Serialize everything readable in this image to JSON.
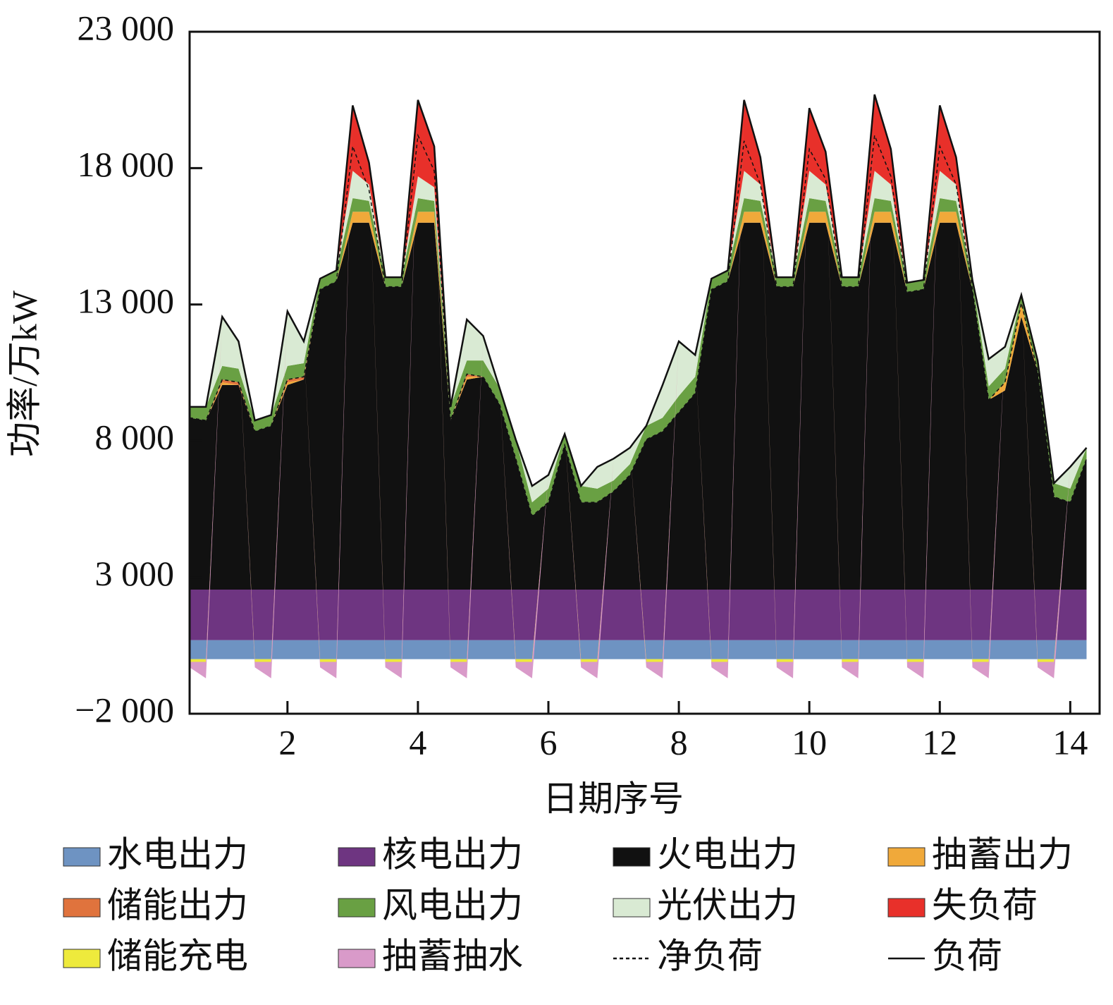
{
  "chart_data": {
    "type": "stacked_area",
    "y_label": "功率/万kW",
    "x_label": "日期序号",
    "xlim": [
      0.5,
      14.45
    ],
    "xticks": [
      2,
      4,
      6,
      8,
      10,
      12,
      14
    ],
    "ylim": [
      -2000,
      23000
    ],
    "yticks": [
      {
        "value": -2000,
        "label": "−2 000"
      },
      {
        "value": 3000,
        "label": "3 000"
      },
      {
        "value": 8000,
        "label": "8 000"
      },
      {
        "value": 13000,
        "label": "13 000"
      },
      {
        "value": 18000,
        "label": "18 000"
      },
      {
        "value": 23000,
        "label": "23 000"
      }
    ],
    "x": [
      0.5,
      0.75,
      1,
      1.25,
      1.5,
      1.75,
      2,
      2.25,
      2.5,
      2.75,
      3,
      3.25,
      3.5,
      3.75,
      4,
      4.25,
      4.5,
      4.75,
      5,
      5.25,
      5.5,
      5.75,
      6,
      6.25,
      6.5,
      6.75,
      7,
      7.25,
      7.5,
      7.75,
      8,
      8.25,
      8.5,
      8.75,
      9,
      9.25,
      9.5,
      9.75,
      10,
      10.25,
      10.5,
      10.75,
      11,
      11.25,
      11.5,
      11.75,
      12,
      12.25,
      12.5,
      12.75,
      13,
      13.25,
      13.5,
      13.75,
      14,
      14.25
    ],
    "series": [
      {
        "name": "水电出力",
        "kind": "area",
        "color": "#6e93c2",
        "values": [
          700,
          700,
          700,
          700,
          700,
          700,
          700,
          700,
          700,
          700,
          700,
          700,
          700,
          700,
          700,
          700,
          700,
          700,
          700,
          700,
          700,
          700,
          700,
          700,
          700,
          700,
          700,
          700,
          700,
          700,
          700,
          700,
          700,
          700,
          700,
          700,
          700,
          700,
          700,
          700,
          700,
          700,
          700,
          700,
          700,
          700,
          700,
          700,
          700,
          700,
          700,
          700,
          700,
          700,
          700,
          700
        ]
      },
      {
        "name": "核电出力",
        "kind": "area",
        "color": "#6e3581",
        "values": [
          1850,
          1850,
          1850,
          1850,
          1850,
          1850,
          1850,
          1850,
          1850,
          1850,
          1850,
          1850,
          1850,
          1850,
          1850,
          1850,
          1850,
          1850,
          1850,
          1850,
          1850,
          1850,
          1850,
          1850,
          1850,
          1850,
          1850,
          1850,
          1850,
          1850,
          1850,
          1850,
          1850,
          1850,
          1850,
          1850,
          1850,
          1850,
          1850,
          1850,
          1850,
          1850,
          1850,
          1850,
          1850,
          1850,
          1850,
          1850,
          1850,
          1850,
          1850,
          1850,
          1850,
          1850,
          1850,
          1850
        ]
      },
      {
        "name": "火电出力",
        "kind": "area",
        "color": "#111111",
        "values": [
          6300,
          6200,
          7500,
          7500,
          5800,
          6000,
          7500,
          7700,
          11000,
          11300,
          13450,
          13450,
          11100,
          11100,
          13450,
          13450,
          6200,
          7700,
          7800,
          6800,
          4800,
          2700,
          3200,
          5300,
          3200,
          3200,
          3600,
          4200,
          5500,
          5800,
          6500,
          7200,
          11000,
          11300,
          13450,
          13450,
          11100,
          11100,
          13450,
          13450,
          11100,
          11100,
          13450,
          13450,
          10900,
          11000,
          13450,
          13450,
          11000,
          6950,
          7300,
          10000,
          8000,
          3400,
          3200,
          4800
        ]
      },
      {
        "name": "抽蓄出力",
        "kind": "area",
        "color": "#f0a93a",
        "values": [
          0,
          0,
          100,
          0,
          0,
          0,
          100,
          0,
          0,
          0,
          400,
          400,
          0,
          0,
          400,
          400,
          0,
          100,
          0,
          0,
          0,
          0,
          0,
          0,
          0,
          0,
          0,
          0,
          0,
          0,
          0,
          0,
          0,
          0,
          400,
          400,
          0,
          0,
          400,
          400,
          0,
          0,
          400,
          400,
          0,
          0,
          400,
          400,
          0,
          0,
          300,
          500,
          0,
          0,
          0,
          0
        ]
      },
      {
        "name": "储能出力",
        "kind": "area",
        "color": "#e0733d",
        "values": [
          0,
          0,
          100,
          100,
          0,
          0,
          100,
          100,
          0,
          0,
          0,
          0,
          0,
          0,
          0,
          0,
          0,
          100,
          0,
          0,
          0,
          0,
          0,
          0,
          0,
          0,
          0,
          0,
          0,
          0,
          0,
          0,
          0,
          0,
          0,
          0,
          0,
          0,
          0,
          0,
          0,
          0,
          0,
          0,
          0,
          0,
          0,
          0,
          0,
          0,
          0,
          0,
          0,
          0,
          0,
          0
        ]
      },
      {
        "name": "风电出力",
        "kind": "area",
        "color": "#69a043",
        "values": [
          400,
          500,
          500,
          500,
          400,
          400,
          500,
          500,
          400,
          400,
          500,
          400,
          350,
          350,
          500,
          400,
          500,
          500,
          600,
          600,
          700,
          500,
          500,
          400,
          600,
          500,
          400,
          400,
          500,
          500,
          600,
          600,
          400,
          400,
          500,
          400,
          350,
          350,
          500,
          400,
          350,
          350,
          500,
          400,
          350,
          350,
          500,
          400,
          350,
          500,
          500,
          300,
          400,
          500,
          500,
          400
        ]
      },
      {
        "name": "光伏出力",
        "kind": "area",
        "color": "#d9ead3",
        "values": [
          0,
          0,
          1800,
          1000,
          0,
          0,
          2000,
          800,
          0,
          0,
          1000,
          600,
          0,
          0,
          800,
          500,
          0,
          1500,
          900,
          0,
          0,
          600,
          500,
          0,
          0,
          800,
          800,
          600,
          0,
          1200,
          2000,
          800,
          0,
          0,
          1000,
          600,
          0,
          0,
          1000,
          600,
          0,
          0,
          1000,
          600,
          0,
          0,
          1000,
          600,
          0,
          1000,
          800,
          0,
          0,
          0,
          800,
          0
        ]
      },
      {
        "name": "失负荷",
        "kind": "area",
        "color": "#e8302a",
        "values": [
          0,
          0,
          0,
          0,
          0,
          0,
          0,
          0,
          0,
          0,
          2400,
          800,
          0,
          0,
          2800,
          1500,
          0,
          0,
          0,
          0,
          0,
          0,
          0,
          0,
          0,
          0,
          0,
          0,
          0,
          0,
          0,
          0,
          0,
          0,
          2600,
          1000,
          0,
          0,
          2300,
          1200,
          0,
          0,
          2800,
          1300,
          0,
          0,
          2400,
          1000,
          0,
          0,
          0,
          0,
          0,
          0,
          0,
          0
        ]
      },
      {
        "name": "储能充电",
        "kind": "area",
        "color": "#eeea3c",
        "values": [
          -100,
          -100,
          0,
          0,
          -100,
          -100,
          0,
          0,
          -100,
          -100,
          0,
          0,
          -100,
          -100,
          0,
          0,
          -100,
          -100,
          0,
          0,
          -100,
          -100,
          0,
          0,
          -100,
          -100,
          0,
          0,
          -100,
          -100,
          0,
          0,
          -100,
          -100,
          0,
          0,
          -100,
          -100,
          0,
          0,
          -100,
          -100,
          0,
          0,
          -100,
          -100,
          0,
          0,
          -100,
          -100,
          0,
          0,
          -100,
          -100,
          0,
          0
        ]
      },
      {
        "name": "抽蓄抽水",
        "kind": "area",
        "color": "#d99ac9",
        "values": [
          -200,
          -600,
          0,
          0,
          -200,
          -600,
          0,
          0,
          -200,
          -600,
          0,
          0,
          -200,
          -600,
          0,
          0,
          -200,
          -600,
          0,
          0,
          -200,
          -600,
          0,
          0,
          -200,
          -600,
          0,
          0,
          -200,
          -600,
          0,
          0,
          -200,
          -600,
          0,
          0,
          -200,
          -600,
          0,
          0,
          -200,
          -600,
          0,
          0,
          -200,
          -600,
          0,
          0,
          -200,
          -600,
          0,
          0,
          -200,
          -600,
          0,
          0
        ]
      },
      {
        "name": "净负荷",
        "kind": "line",
        "dash": true,
        "color": "#111111",
        "values": [
          8850,
          8750,
          10250,
          10150,
          8350,
          8550,
          10250,
          10350,
          13550,
          13850,
          18800,
          17200,
          13650,
          13650,
          19200,
          17900,
          8750,
          10450,
          10350,
          9350,
          7350,
          5250,
          5750,
          7850,
          5750,
          5750,
          6150,
          6750,
          8050,
          8350,
          9050,
          9750,
          13550,
          13850,
          19000,
          17400,
          13650,
          13650,
          18700,
          17600,
          13650,
          13650,
          19200,
          17700,
          13450,
          13550,
          18800,
          17400,
          13550,
          9500,
          10150,
          13050,
          10550,
          5950,
          5750,
          7350
        ]
      },
      {
        "name": "负荷",
        "kind": "line",
        "dash": false,
        "color": "#111111",
        "values": [
          9250,
          9250,
          12550,
          11650,
          8750,
          8950,
          12750,
          11650,
          13950,
          14250,
          20300,
          18200,
          14000,
          14000,
          20500,
          18800,
          9250,
          12450,
          11850,
          9950,
          8050,
          6350,
          6750,
          8250,
          6350,
          7050,
          7350,
          7750,
          8550,
          10050,
          11650,
          11150,
          13950,
          14250,
          20500,
          18400,
          14000,
          14000,
          20200,
          18600,
          14000,
          14000,
          20700,
          18700,
          13800,
          13900,
          20300,
          18400,
          13900,
          11000,
          11450,
          13350,
          10950,
          6450,
          7050,
          7750
        ]
      }
    ]
  }
}
